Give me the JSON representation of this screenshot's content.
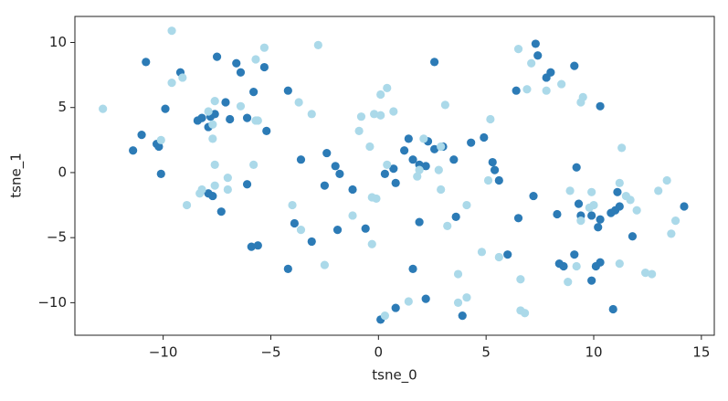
{
  "chart_data": {
    "type": "scatter",
    "x_label": "tsne_0",
    "y_label": "tsne_1",
    "xlim": [
      -14.1,
      15.6
    ],
    "ylim": [
      -12.5,
      12.0
    ],
    "xticks": [
      -10,
      -5,
      0,
      5,
      10,
      15
    ],
    "yticks": [
      -10,
      -5,
      0,
      5,
      10
    ],
    "grid": false,
    "series": [
      {
        "color": "#2c7bb6",
        "x": [
          -10.8,
          -9.2,
          -7.5,
          -6.6,
          -6.4,
          -5.3,
          -5.8,
          -4.2,
          -9.9,
          -7.1,
          -8.4,
          -8.2,
          -7.8,
          -7.6,
          -7.9,
          -6.9,
          -6.1,
          -5.2,
          -11.0,
          -11.4,
          -10.3,
          -10.2,
          -10.1,
          -7.9,
          -7.7,
          -7.3,
          -6.1,
          -5.9,
          -5.6,
          -3.6,
          -3.9,
          -3.1,
          -4.2,
          -2.5,
          -2.4,
          -2.0,
          -1.8,
          -1.2,
          -1.9,
          -0.6,
          0.1,
          0.8,
          2.2,
          2.6,
          1.2,
          1.4,
          2.3,
          3.0,
          2.6,
          1.6,
          1.9,
          2.2,
          0.3,
          0.7,
          0.8,
          1.9,
          1.6,
          3.5,
          4.3,
          4.9,
          5.3,
          5.4,
          5.6,
          3.6,
          3.9,
          6.0,
          6.5,
          6.4,
          7.3,
          7.4,
          7.8,
          8.0,
          7.2,
          8.3,
          8.4,
          8.6,
          9.1,
          9.2,
          9.1,
          9.3,
          9.4,
          9.9,
          9.9,
          10.3,
          10.1,
          10.3,
          10.2,
          10.8,
          11.1,
          11.0,
          11.2,
          10.9,
          11.8,
          14.2,
          10.3
        ],
        "values": [
          8.5,
          7.7,
          8.9,
          8.4,
          7.7,
          8.1,
          6.2,
          6.3,
          4.9,
          5.4,
          4.0,
          4.2,
          4.3,
          4.5,
          3.5,
          4.1,
          4.2,
          3.2,
          2.9,
          1.7,
          2.2,
          2.0,
          -0.1,
          -1.6,
          -1.8,
          -3.0,
          -0.9,
          -5.7,
          -5.6,
          1.0,
          -3.9,
          -5.3,
          -7.4,
          -1.0,
          1.5,
          0.5,
          -0.1,
          -1.3,
          -4.4,
          -4.3,
          -11.3,
          -10.4,
          -9.7,
          8.5,
          1.7,
          2.6,
          2.4,
          2.0,
          1.8,
          1.0,
          0.6,
          0.5,
          -0.1,
          0.3,
          -0.8,
          -3.8,
          -7.4,
          1.0,
          2.3,
          2.7,
          0.8,
          0.2,
          -0.6,
          -3.4,
          -11.0,
          -6.3,
          -3.5,
          6.3,
          9.9,
          9.0,
          7.3,
          7.7,
          -1.8,
          -3.2,
          -7.0,
          -7.2,
          8.2,
          0.4,
          -6.3,
          -2.4,
          -3.3,
          -3.3,
          -8.3,
          5.1,
          -7.2,
          -6.9,
          -4.2,
          -3.1,
          -1.5,
          -2.9,
          -2.6,
          -10.5,
          -4.9,
          -2.6,
          -3.6
        ]
      },
      {
        "color": "#abd9e9",
        "x": [
          -12.8,
          -9.6,
          -9.6,
          -9.1,
          -7.9,
          -7.6,
          -7.7,
          -7.7,
          -6.4,
          -5.7,
          -5.6,
          -5.7,
          -5.3,
          -2.8,
          -3.7,
          -3.1,
          -10.1,
          -7.6,
          -7.0,
          -8.2,
          -8.3,
          -8.9,
          -7.6,
          -7.0,
          -5.8,
          -4.0,
          -3.6,
          -2.5,
          -1.2,
          -0.9,
          -0.8,
          -0.4,
          -0.2,
          0.1,
          0.1,
          0.4,
          0.7,
          -0.3,
          -0.1,
          -0.3,
          0.3,
          0.4,
          1.4,
          2.1,
          1.8,
          2.8,
          2.9,
          3.1,
          2.9,
          3.2,
          1.9,
          3.7,
          4.1,
          3.7,
          4.1,
          5.2,
          5.1,
          4.8,
          5.6,
          6.5,
          6.9,
          7.1,
          7.8,
          8.5,
          9.5,
          9.4,
          9.9,
          10.0,
          9.4,
          9.8,
          8.9,
          8.8,
          9.2,
          11.3,
          11.2,
          11.5,
          11.7,
          12.0,
          11.2,
          12.4,
          12.7,
          13.0,
          13.4,
          13.8,
          13.6,
          6.6,
          6.6,
          6.8
        ],
        "values": [
          4.9,
          10.9,
          6.9,
          7.3,
          4.7,
          5.5,
          3.7,
          2.6,
          5.1,
          4.0,
          4.0,
          8.7,
          9.6,
          9.8,
          5.4,
          4.5,
          2.5,
          0.6,
          -0.4,
          -1.3,
          -1.6,
          -2.5,
          -1.0,
          -1.3,
          0.6,
          -2.5,
          -4.4,
          -7.1,
          -3.3,
          3.2,
          4.3,
          2.0,
          4.5,
          4.4,
          6.0,
          6.5,
          4.7,
          -1.9,
          -2.0,
          -5.5,
          -11.0,
          0.6,
          -9.9,
          2.6,
          -0.3,
          0.2,
          -1.3,
          5.2,
          2.0,
          -4.1,
          0.2,
          -7.8,
          -9.6,
          -10.0,
          -2.5,
          4.1,
          -0.6,
          -6.1,
          -6.5,
          9.5,
          6.4,
          8.4,
          6.3,
          6.8,
          5.8,
          5.4,
          -1.5,
          -2.5,
          -3.7,
          -2.7,
          -1.4,
          -8.4,
          -7.2,
          1.9,
          -0.8,
          -1.8,
          -2.1,
          -2.9,
          -7.0,
          -7.7,
          -7.8,
          -1.4,
          -0.6,
          -3.7,
          -4.7,
          -8.2,
          -10.6,
          -10.8
        ]
      }
    ]
  }
}
